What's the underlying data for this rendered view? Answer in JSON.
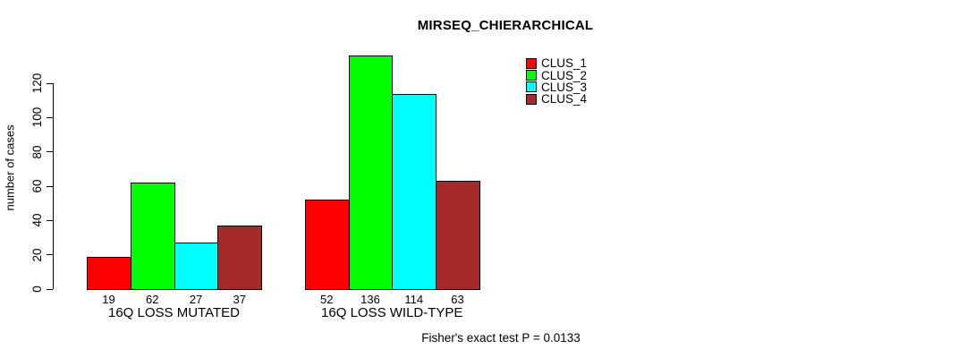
{
  "chart_data": {
    "type": "bar",
    "title": "MIRSEQ_CHIERARCHICAL",
    "ylabel": "number of cases",
    "ylim": [
      0,
      120
    ],
    "yticks": [
      0,
      20,
      40,
      60,
      80,
      100,
      120
    ],
    "categories": [
      "16Q LOSS MUTATED",
      "16Q LOSS WILD-TYPE"
    ],
    "series": [
      {
        "name": "CLUS_1",
        "color": "#ff0000",
        "values": [
          19,
          52
        ]
      },
      {
        "name": "CLUS_2",
        "color": "#00ff00",
        "values": [
          62,
          136
        ]
      },
      {
        "name": "CLUS_3",
        "color": "#00ffff",
        "values": [
          27,
          114
        ]
      },
      {
        "name": "CLUS_4",
        "color": "#a52a2a",
        "values": [
          37,
          63
        ]
      }
    ],
    "bar_value_labels": [
      [
        "19",
        "62",
        "27",
        "37"
      ],
      [
        "52",
        "136",
        "114",
        "63"
      ]
    ],
    "legend_position": "top-right",
    "grid": false,
    "annotation": "Fisher's exact test P = 0.0133"
  }
}
